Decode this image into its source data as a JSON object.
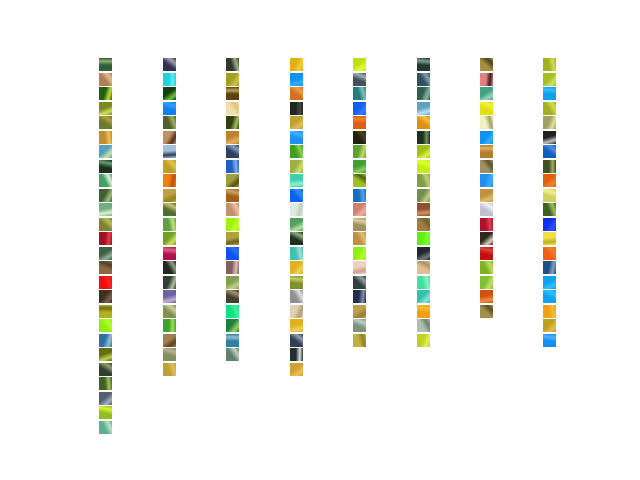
{
  "grid": {
    "columns": [
      {
        "tiles": [
          {
            "color": "#2f5f3a",
            "accent": "#8fb070"
          },
          {
            "color": "#b08050",
            "accent": "#e0c090"
          },
          {
            "color": "#1e6010",
            "accent": "#c0e030"
          },
          {
            "color": "#7a8a20",
            "accent": "#d0e050"
          },
          {
            "color": "#6a7a30",
            "accent": "#b0a040"
          },
          {
            "color": "#c09030",
            "accent": "#f0c050"
          },
          {
            "color": "#50a0c0",
            "accent": "#d0e0a0"
          },
          {
            "color": "#203020",
            "accent": "#60a070"
          },
          {
            "color": "#40a060",
            "accent": "#e0f0e0"
          },
          {
            "color": "#406030",
            "accent": "#a0c080"
          },
          {
            "color": "#70b080",
            "accent": "#e0f0d0"
          },
          {
            "color": "#808030",
            "accent": "#b0c060"
          },
          {
            "color": "#a01020",
            "accent": "#e04050"
          },
          {
            "color": "#406040",
            "accent": "#90b0a0"
          },
          {
            "color": "#8a6a40",
            "accent": "#504030"
          },
          {
            "color": "#ee1010",
            "accent": "#ff2020"
          },
          {
            "color": "#403020",
            "accent": "#806050"
          },
          {
            "color": "#b0b020",
            "accent": "#707010"
          },
          {
            "color": "#90ee10",
            "accent": "#b0ff30"
          },
          {
            "color": "#3070a0",
            "accent": "#90c0d0"
          },
          {
            "color": "#607010",
            "accent": "#c0d050"
          },
          {
            "color": "#304030",
            "accent": "#90a070"
          },
          {
            "color": "#406020",
            "accent": "#a0c060"
          },
          {
            "color": "#506070",
            "accent": "#a0b0c0"
          },
          {
            "color": "#90c020",
            "accent": "#e0f030"
          },
          {
            "color": "#60b090",
            "accent": "#c0e0c0"
          }
        ]
      },
      {
        "tiles": [
          {
            "color": "#303050",
            "accent": "#a0a0b0"
          },
          {
            "color": "#20d0e0",
            "accent": "#60f0f0"
          },
          {
            "color": "#104010",
            "accent": "#70c040"
          },
          {
            "color": "#1080f0",
            "accent": "#30a0ff"
          },
          {
            "color": "#506030",
            "accent": "#a0b060"
          },
          {
            "color": "#c09060",
            "accent": "#503020"
          },
          {
            "color": "#a0c0e0",
            "accent": "#304050"
          },
          {
            "color": "#c0a020",
            "accent": "#e0c050"
          },
          {
            "color": "#f08010",
            "accent": "#c05000"
          },
          {
            "color": "#c0a040",
            "accent": "#908020"
          },
          {
            "color": "#507030",
            "accent": "#d0c070"
          },
          {
            "color": "#60a040",
            "accent": "#c0e080"
          },
          {
            "color": "#70a020",
            "accent": "#d0e060"
          },
          {
            "color": "#b01050",
            "accent": "#e06080"
          },
          {
            "color": "#202820",
            "accent": "#90a080"
          },
          {
            "color": "#304030",
            "accent": "#b0c0a0"
          },
          {
            "color": "#7060a0",
            "accent": "#c0b0d0"
          },
          {
            "color": "#809050",
            "accent": "#d0d0a0"
          },
          {
            "color": "#40a030",
            "accent": "#a0e050"
          },
          {
            "color": "#a08050",
            "accent": "#604020"
          },
          {
            "color": "#809060",
            "accent": "#c0b090"
          },
          {
            "color": "#c0a030",
            "accent": "#e0c060"
          }
        ]
      },
      {
        "tiles": [
          {
            "color": "#303830",
            "accent": "#a0b080"
          },
          {
            "color": "#a0a020",
            "accent": "#d0c050"
          },
          {
            "color": "#604010",
            "accent": "#c0a050"
          },
          {
            "color": "#f0e0b0",
            "accent": "#e0c080"
          },
          {
            "color": "#304010",
            "accent": "#a0c060"
          },
          {
            "color": "#c08030",
            "accent": "#e0b060"
          },
          {
            "color": "#304060",
            "accent": "#80a0c0"
          },
          {
            "color": "#2060c0",
            "accent": "#80b0e0"
          },
          {
            "color": "#a0a040",
            "accent": "#505010"
          },
          {
            "color": "#a06020",
            "accent": "#d0a060"
          },
          {
            "color": "#c09070",
            "accent": "#f0c0a0"
          },
          {
            "color": "#a0f010",
            "accent": "#c0ff30"
          },
          {
            "color": "#b0a040",
            "accent": "#706020"
          },
          {
            "color": "#1050f0",
            "accent": "#3070ff"
          },
          {
            "color": "#806060",
            "accent": "#e0c0b0"
          },
          {
            "color": "#80a050",
            "accent": "#c0d090"
          },
          {
            "color": "#404030",
            "accent": "#a09070"
          },
          {
            "color": "#10e080",
            "accent": "#40f0a0"
          },
          {
            "color": "#208040",
            "accent": "#a0d060"
          },
          {
            "color": "#3080a0",
            "accent": "#90c0d0"
          },
          {
            "color": "#608070",
            "accent": "#c0d0c0"
          }
        ]
      },
      {
        "tiles": [
          {
            "color": "#e0b010",
            "accent": "#f0d040"
          },
          {
            "color": "#1090f0",
            "accent": "#30b0ff"
          },
          {
            "color": "#d07020",
            "accent": "#f0a040"
          },
          {
            "color": "#202820",
            "accent": "#404840"
          },
          {
            "color": "#c0a030",
            "accent": "#e0c060"
          },
          {
            "color": "#2090f0",
            "accent": "#40b0ff"
          },
          {
            "color": "#40a020",
            "accent": "#90d050"
          },
          {
            "color": "#a0b040",
            "accent": "#d0e070"
          },
          {
            "color": "#40d0b0",
            "accent": "#90f0d0"
          },
          {
            "color": "#1060f0",
            "accent": "#3090ff"
          },
          {
            "color": "#e0e8e8",
            "accent": "#c0d0c0"
          },
          {
            "color": "#50a060",
            "accent": "#c0e0a0"
          },
          {
            "color": "#203020",
            "accent": "#90b080"
          },
          {
            "color": "#40c0b0",
            "accent": "#a0e0d0"
          },
          {
            "color": "#e0b020",
            "accent": "#f0d060"
          },
          {
            "color": "#809030",
            "accent": "#c0d060"
          },
          {
            "color": "#909090",
            "accent": "#e0e0e0"
          },
          {
            "color": "#e0d0b0",
            "accent": "#b0a080"
          },
          {
            "color": "#e0b020",
            "accent": "#f0d060"
          },
          {
            "color": "#304050",
            "accent": "#90a0b0"
          },
          {
            "color": "#203030",
            "accent": "#e0e0e0"
          },
          {
            "color": "#d0a030",
            "accent": "#f0c060"
          }
        ]
      },
      {
        "tiles": [
          {
            "color": "#c0e010",
            "accent": "#e0ff30"
          },
          {
            "color": "#405060",
            "accent": "#a0b0b0"
          },
          {
            "color": "#208080",
            "accent": "#80c0b0"
          },
          {
            "color": "#1060f0",
            "accent": "#3080ff"
          },
          {
            "color": "#e06010",
            "accent": "#f08030"
          },
          {
            "color": "#202010",
            "accent": "#504020"
          },
          {
            "color": "#60a030",
            "accent": "#c0e060"
          },
          {
            "color": "#40a030",
            "accent": "#90d060"
          },
          {
            "color": "#a0c020",
            "accent": "#506010"
          },
          {
            "color": "#1070c0",
            "accent": "#60a0e0"
          },
          {
            "color": "#d08070",
            "accent": "#f0b0a0"
          },
          {
            "color": "#a09060",
            "accent": "#e0d0a0"
          },
          {
            "color": "#c09040",
            "accent": "#e0c070"
          },
          {
            "color": "#90f010",
            "accent": "#b0ff30"
          },
          {
            "color": "#f0d0c0",
            "accent": "#d0a090"
          },
          {
            "color": "#304040",
            "accent": "#90a0a0"
          },
          {
            "color": "#203050",
            "accent": "#8090b0"
          },
          {
            "color": "#c0a050",
            "accent": "#908030"
          },
          {
            "color": "#809080",
            "accent": "#c0d0c0"
          },
          {
            "color": "#c0b040",
            "accent": "#908020"
          }
        ]
      },
      {
        "tiles": [
          {
            "color": "#203830",
            "accent": "#80a090"
          },
          {
            "color": "#305060",
            "accent": "#80a0b0"
          },
          {
            "color": "#306050",
            "accent": "#90b0a0"
          },
          {
            "color": "#60a0c0",
            "accent": "#c0e0f0"
          },
          {
            "color": "#e09010",
            "accent": "#f0c040"
          },
          {
            "color": "#203020",
            "accent": "#709060"
          },
          {
            "color": "#a0c010",
            "accent": "#e0f040"
          },
          {
            "color": "#c0f010",
            "accent": "#e0ff30"
          },
          {
            "color": "#80a040",
            "accent": "#c0d080"
          },
          {
            "color": "#709050",
            "accent": "#c0d080"
          },
          {
            "color": "#905030",
            "accent": "#d09060"
          },
          {
            "color": "#a08040",
            "accent": "#706030"
          },
          {
            "color": "#60f010",
            "accent": "#80ff30"
          },
          {
            "color": "#202830",
            "accent": "#707880"
          },
          {
            "color": "#e0c090",
            "accent": "#b09060"
          },
          {
            "color": "#40e0a0",
            "accent": "#90f0c0"
          },
          {
            "color": "#30c0b0",
            "accent": "#90e0d0"
          },
          {
            "color": "#f0a010",
            "accent": "#f0c040"
          },
          {
            "color": "#b0c0b0",
            "accent": "#708070"
          },
          {
            "color": "#c0d020",
            "accent": "#e0f060"
          }
        ]
      },
      {
        "tiles": [
          {
            "color": "#a09040",
            "accent": "#504020"
          },
          {
            "color": "#e08080",
            "accent": "#402020"
          },
          {
            "color": "#40a080",
            "accent": "#a0d0c0"
          },
          {
            "color": "#e0e010",
            "accent": "#f0f040"
          },
          {
            "color": "#f0f0c0",
            "accent": "#a0a070"
          },
          {
            "color": "#1090f0",
            "accent": "#30b0ff"
          },
          {
            "color": "#b08030",
            "accent": "#e0b060"
          },
          {
            "color": "#a09060",
            "accent": "#605030"
          },
          {
            "color": "#2090f0",
            "accent": "#40b0ff"
          },
          {
            "color": "#c09040",
            "accent": "#e0c070"
          },
          {
            "color": "#c0c0d0",
            "accent": "#f0f0f0"
          },
          {
            "color": "#b01030",
            "accent": "#e04050"
          },
          {
            "color": "#302820",
            "accent": "#e0d0c0"
          },
          {
            "color": "#c01010",
            "accent": "#e04040"
          },
          {
            "color": "#80b020",
            "accent": "#c0e060"
          },
          {
            "color": "#80c030",
            "accent": "#c0e070"
          },
          {
            "color": "#d05010",
            "accent": "#f09040"
          },
          {
            "color": "#a09050",
            "accent": "#605020"
          }
        ]
      },
      {
        "tiles": [
          {
            "color": "#a0b020",
            "accent": "#d0e050"
          },
          {
            "color": "#a0c020",
            "accent": "#d0e060"
          },
          {
            "color": "#10a0f0",
            "accent": "#30c0ff"
          },
          {
            "color": "#a0b020",
            "accent": "#d0e050"
          },
          {
            "color": "#a0a060",
            "accent": "#e0e0a0"
          },
          {
            "color": "#202020",
            "accent": "#c0c0c0"
          },
          {
            "color": "#1060c0",
            "accent": "#5090e0"
          },
          {
            "color": "#405020",
            "accent": "#a0b060"
          },
          {
            "color": "#e06010",
            "accent": "#f08030"
          },
          {
            "color": "#d0d060",
            "accent": "#f0f090"
          },
          {
            "color": "#406020",
            "accent": "#a0c060"
          },
          {
            "color": "#1030f0",
            "accent": "#3050ff"
          },
          {
            "color": "#f0e040",
            "accent": "#c0b020"
          },
          {
            "color": "#f06010",
            "accent": "#f08030"
          },
          {
            "color": "#205080",
            "accent": "#80a0c0"
          },
          {
            "color": "#10a0f0",
            "accent": "#30c0ff"
          },
          {
            "color": "#10a0f0",
            "accent": "#30c0ff"
          },
          {
            "color": "#f0a010",
            "accent": "#f0c040"
          },
          {
            "color": "#c0a020",
            "accent": "#e0c050"
          },
          {
            "color": "#1090f0",
            "accent": "#50b0ff"
          }
        ]
      }
    ]
  }
}
